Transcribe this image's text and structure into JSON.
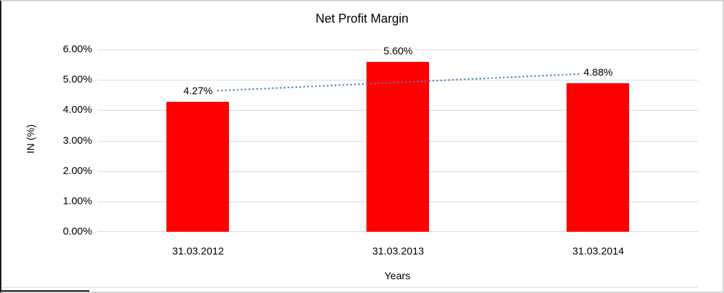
{
  "chart_data": {
    "type": "bar",
    "title": "Net Profit Margin",
    "xlabel": "Years",
    "ylabel": "IN (%)",
    "categories": [
      "31.03.2012",
      "31.03.2013",
      "31.03.2014"
    ],
    "values": [
      4.27,
      5.6,
      4.88
    ],
    "data_labels": [
      "4.27%",
      "5.60%",
      "4.88%"
    ],
    "ylim": [
      0,
      6
    ],
    "ytick_labels": [
      "0.00%",
      "1.00%",
      "2.00%",
      "3.00%",
      "4.00%",
      "5.00%",
      "6.00%"
    ],
    "grid": true,
    "legend": "none",
    "trendline": {
      "type": "linear",
      "style": "dotted"
    },
    "colors": {
      "bar": "#ff0000",
      "trendline": "#4a7ebb",
      "gridline": "#d9d9d9",
      "text": "#000000"
    }
  }
}
